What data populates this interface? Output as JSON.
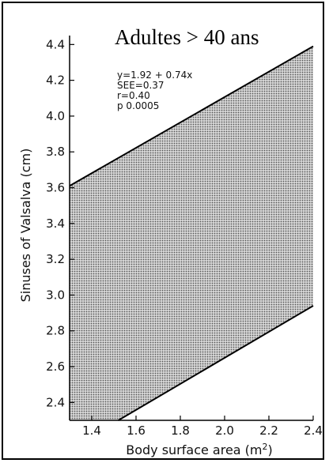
{
  "chart_data": {
    "type": "area",
    "title": "Adultes > 40 ans",
    "xlabel": "Body surface area (m",
    "xlabel_sup": "2",
    "xlabel_close": ")",
    "ylabel": "Sinuses of Valsalva (cm)",
    "xlim": [
      1.3,
      2.4
    ],
    "ylim": [
      2.3,
      4.45
    ],
    "x_ticks": [
      "1.4",
      "1.6",
      "1.8",
      "2.0",
      "2.2",
      "2.4"
    ],
    "y_ticks": [
      "2.4",
      "2.6",
      "2.8",
      "3.0",
      "3.2",
      "3.4",
      "3.6",
      "3.8",
      "4.0",
      "4.2",
      "4.4"
    ],
    "band": {
      "upper": [
        [
          1.3,
          3.61
        ],
        [
          2.4,
          4.39
        ]
      ],
      "lower": [
        [
          1.52,
          2.3
        ],
        [
          2.4,
          2.94
        ]
      ],
      "fill_color": "#8a8a8a"
    },
    "annotations": [
      "y=1.92 + 0.74x",
      "SEE=0.37",
      "r=0.40",
      "p  0.0005"
    ]
  }
}
